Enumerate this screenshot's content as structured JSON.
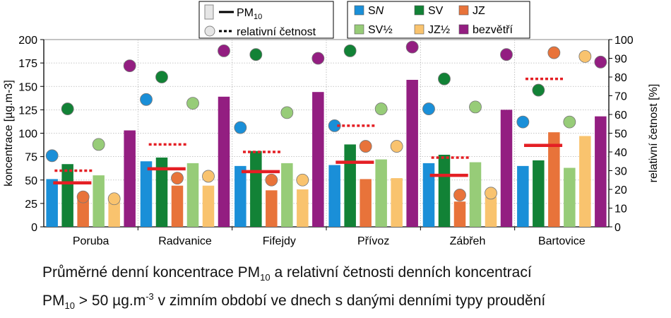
{
  "chart_data": {
    "type": "bar",
    "categories": [
      "Poruba",
      "Radvanice",
      "Fifejdy",
      "Přívoz",
      "Zábřeh",
      "Bartovice"
    ],
    "ylabel": "koncentrace [µg.m-3]",
    "ylabel2": "relativní četnost [%]",
    "ylim": [
      0,
      200
    ],
    "ylim2": [
      0,
      100
    ],
    "yticks": [
      "0",
      "25",
      "50",
      "75",
      "100",
      "125",
      "150",
      "175",
      "200"
    ],
    "yticks2": [
      "0",
      "10",
      "20",
      "30",
      "40",
      "50",
      "60",
      "70",
      "80",
      "90",
      "100"
    ],
    "grid": true,
    "legend_position": "top",
    "legend": {
      "key_bar": "PM10 bar",
      "key_line": "PM",
      "key_line_sub": "10",
      "key_dot": "relative frequency dot",
      "key_dash": "relativní četnost"
    },
    "series": [
      {
        "name": "SN",
        "name_main": "S",
        "name_italic": "N",
        "color": "#1a8fd8",
        "pm10": [
          51,
          70,
          65,
          66,
          68,
          65
        ],
        "freq": [
          38,
          68,
          53,
          54,
          63,
          56
        ]
      },
      {
        "name": "SV",
        "name_main": "SV",
        "name_italic": "",
        "color": "#128236",
        "pm10": [
          67,
          74,
          81,
          88,
          77,
          71
        ],
        "freq": [
          63,
          80,
          92,
          94,
          79,
          73
        ]
      },
      {
        "name": "JZ",
        "name_main": "JZ",
        "name_italic": "",
        "color": "#e8733a",
        "pm10": [
          30,
          44,
          39,
          51,
          27,
          101
        ],
        "freq": [
          16,
          26,
          25,
          43,
          17,
          93
        ]
      },
      {
        "name": "SV½",
        "name_main": "SV½",
        "name_italic": "",
        "color": "#97cc78",
        "pm10": [
          55,
          68,
          68,
          72,
          69,
          63
        ],
        "freq": [
          44,
          66,
          61,
          63,
          64,
          56
        ]
      },
      {
        "name": "JZ½",
        "name_main": "JZ½",
        "name_italic": "",
        "color": "#f9c36e",
        "pm10": [
          30,
          44,
          40,
          52,
          32,
          97
        ],
        "freq": [
          15,
          27,
          25,
          43,
          18,
          91
        ]
      },
      {
        "name": "bezvětří",
        "name_main": "bezvětří",
        "name_italic": "",
        "color": "#931e81",
        "pm10": [
          103,
          139,
          144,
          157,
          125,
          118
        ],
        "freq": [
          86,
          94,
          90,
          96,
          92,
          88
        ]
      }
    ],
    "daily_mean_pm10": [
      47,
      62,
      59,
      69,
      55,
      87
    ],
    "daily_rel_freq": [
      30,
      44,
      40,
      54,
      37,
      79
    ]
  },
  "caption": {
    "line1_a": "Průměrné denní koncentrace PM",
    "line1_sub": "10",
    "line1_b": " a relativní četnosti denních koncentrací",
    "line2_a": "PM",
    "line2_sub": "10",
    "line2_b": " > 50 µg.m",
    "line2_sup": "-3",
    "line2_c": " v zimním období ve dnech s danými denními typy proudění"
  }
}
